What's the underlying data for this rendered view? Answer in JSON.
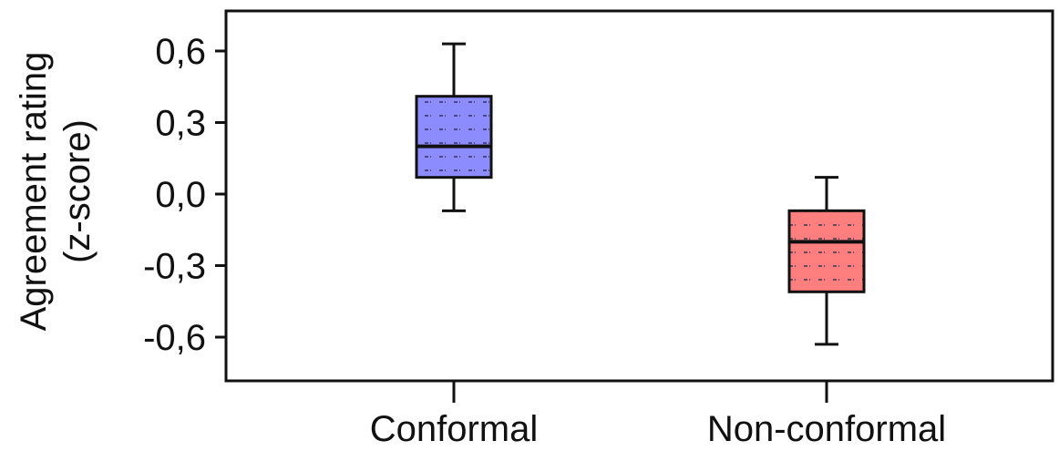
{
  "chart_data": {
    "type": "box",
    "title": "",
    "xlabel": "",
    "ylabel": [
      "Agreement rating",
      "(z-score)"
    ],
    "ylim": [
      -0.78,
      0.78
    ],
    "yticks": [
      0.6,
      0.3,
      0.0,
      -0.3,
      -0.6
    ],
    "ytick_labels": [
      "0,6",
      "0,3",
      "0,0",
      "-0,3",
      "-0,6"
    ],
    "categories": [
      "Conformal",
      "Non-conformal"
    ],
    "boxes": [
      {
        "category": "Conformal",
        "whisker_low": -0.07,
        "q1": 0.07,
        "median": 0.2,
        "q3": 0.41,
        "whisker_high": 0.63,
        "color": "#8c8cff"
      },
      {
        "category": "Non-conformal",
        "whisker_low": -0.63,
        "q1": -0.41,
        "median": -0.2,
        "q3": -0.07,
        "whisker_high": 0.07,
        "color": "#ff7f7f"
      }
    ],
    "grid": false,
    "legend": "none"
  }
}
